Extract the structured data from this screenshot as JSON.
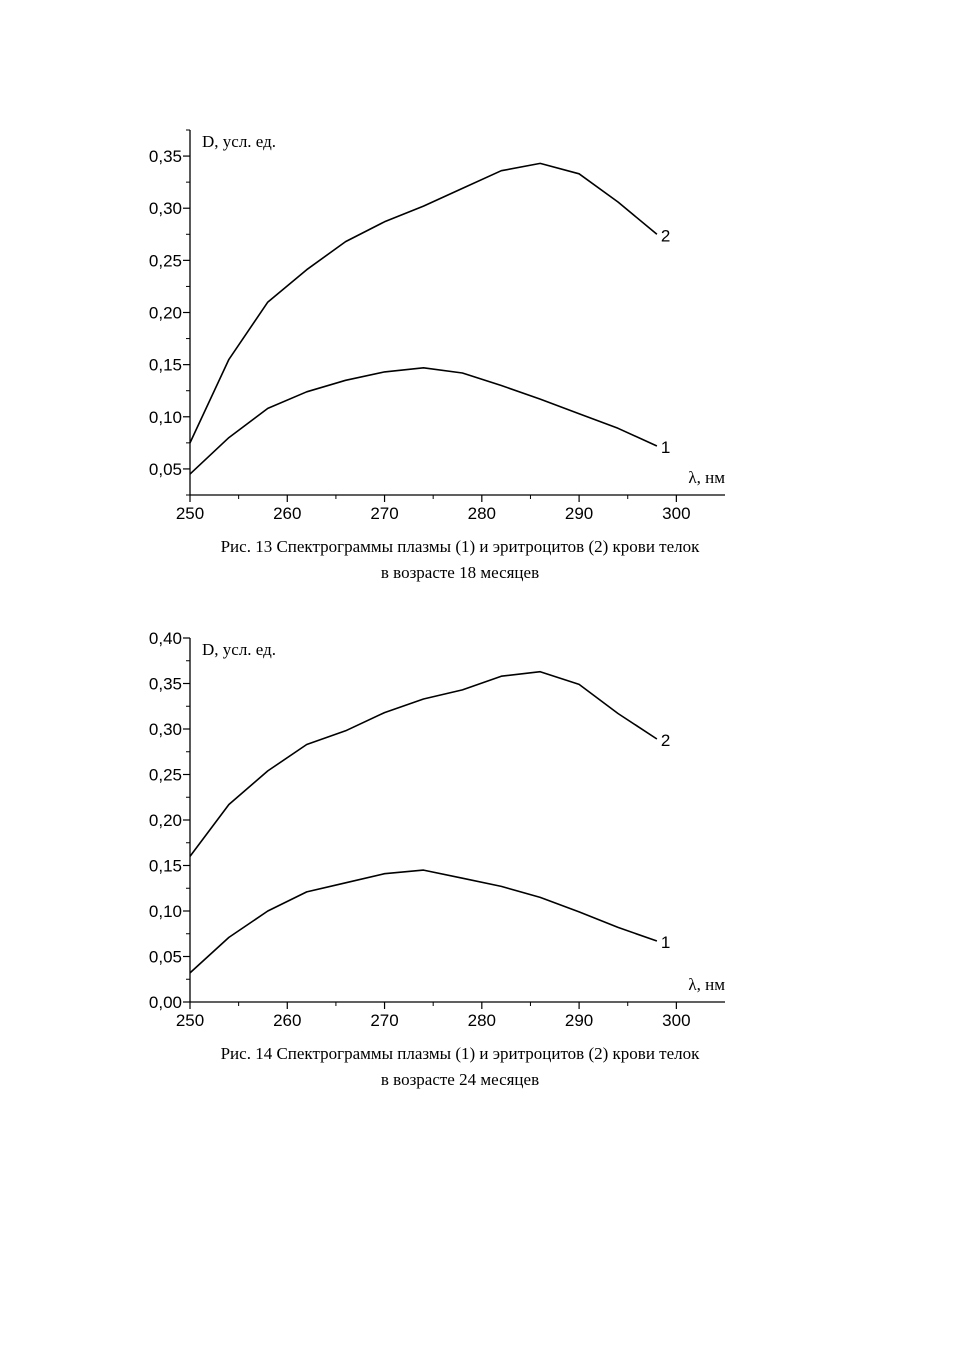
{
  "chart_data": [
    {
      "type": "line",
      "ylabel": "D, усл. ед.",
      "xlabel": "λ, нм",
      "xlim": [
        250,
        305
      ],
      "ylim": [
        0.025,
        0.375
      ],
      "x_ticks": [
        250,
        260,
        270,
        280,
        290,
        300
      ],
      "x_tick_labels": [
        "250",
        "260",
        "270",
        "280",
        "290",
        "300"
      ],
      "y_ticks": [
        0.05,
        0.1,
        0.15,
        0.2,
        0.25,
        0.3,
        0.35
      ],
      "y_tick_labels": [
        "0,05",
        "0,10",
        "0,15",
        "0,20",
        "0,25",
        "0,30",
        "0,35"
      ],
      "grid": false,
      "x": [
        250,
        254,
        258,
        262,
        266,
        270,
        274,
        278,
        282,
        286,
        290,
        294,
        298
      ],
      "series": [
        {
          "name": "1",
          "values": [
            0.045,
            0.08,
            0.108,
            0.124,
            0.135,
            0.143,
            0.147,
            0.142,
            0.13,
            0.117,
            0.103,
            0.089,
            0.072
          ]
        },
        {
          "name": "2",
          "values": [
            0.075,
            0.155,
            0.21,
            0.241,
            0.268,
            0.287,
            0.302,
            0.319,
            0.336,
            0.343,
            0.333,
            0.306,
            0.275
          ]
        }
      ],
      "caption": [
        "Рис. 13 Спектрограммы плазмы (1) и эритроцитов (2) крови телок",
        "в возрасте 18 месяцев"
      ]
    },
    {
      "type": "line",
      "ylabel": "D, усл. ед.",
      "xlabel": "λ, нм",
      "xlim": [
        250,
        305
      ],
      "ylim": [
        0.0,
        0.4
      ],
      "x_ticks": [
        250,
        260,
        270,
        280,
        290,
        300
      ],
      "x_tick_labels": [
        "250",
        "260",
        "270",
        "280",
        "290",
        "300"
      ],
      "y_ticks": [
        0.0,
        0.05,
        0.1,
        0.15,
        0.2,
        0.25,
        0.3,
        0.35,
        0.4
      ],
      "y_tick_labels": [
        "0,00",
        "0,05",
        "0,10",
        "0,15",
        "0,20",
        "0,25",
        "0,30",
        "0,35",
        "0,40"
      ],
      "grid": false,
      "x": [
        250,
        254,
        258,
        262,
        266,
        270,
        274,
        278,
        282,
        286,
        290,
        294,
        298
      ],
      "series": [
        {
          "name": "1",
          "values": [
            0.032,
            0.071,
            0.1,
            0.121,
            0.131,
            0.141,
            0.145,
            0.136,
            0.127,
            0.115,
            0.099,
            0.082,
            0.067
          ]
        },
        {
          "name": "2",
          "values": [
            0.16,
            0.217,
            0.254,
            0.283,
            0.298,
            0.318,
            0.333,
            0.343,
            0.358,
            0.363,
            0.349,
            0.317,
            0.289
          ]
        }
      ],
      "caption": [
        "Рис. 14 Спектрограммы плазмы (1) и эритроцитов (2) крови телок",
        "в возрасте 24 месяцев"
      ]
    }
  ]
}
